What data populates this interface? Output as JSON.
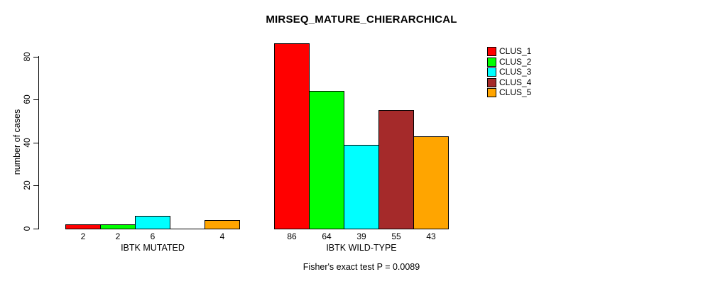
{
  "chart_data": {
    "type": "bar",
    "title": "MIRSEQ_MATURE_CHIERARCHICAL",
    "ylabel": "number of cases",
    "xlabel": "",
    "caption": "Fisher's exact test P = 0.0089",
    "categories": [
      "IBTK MUTATED",
      "IBTK WILD-TYPE"
    ],
    "series": [
      {
        "name": "CLUS_1",
        "color": "#FF0000",
        "values": [
          2,
          86
        ]
      },
      {
        "name": "CLUS_2",
        "color": "#00FF00",
        "values": [
          2,
          64
        ]
      },
      {
        "name": "CLUS_3",
        "color": "#00FFFF",
        "values": [
          6,
          39
        ]
      },
      {
        "name": "CLUS_4",
        "color": "#A52A2A",
        "values": [
          0,
          55
        ]
      },
      {
        "name": "CLUS_5",
        "color": "#FFA500",
        "values": [
          4,
          43
        ]
      }
    ],
    "yticks": [
      0,
      20,
      40,
      60,
      80
    ],
    "ylim": [
      0,
      86
    ],
    "grid": false,
    "legend_position": "top-right",
    "bar_value_labels_shown": true,
    "zero_value_bars_hidden_labels": true,
    "background_color": "#FFFFFF",
    "text_color": "#000000"
  }
}
